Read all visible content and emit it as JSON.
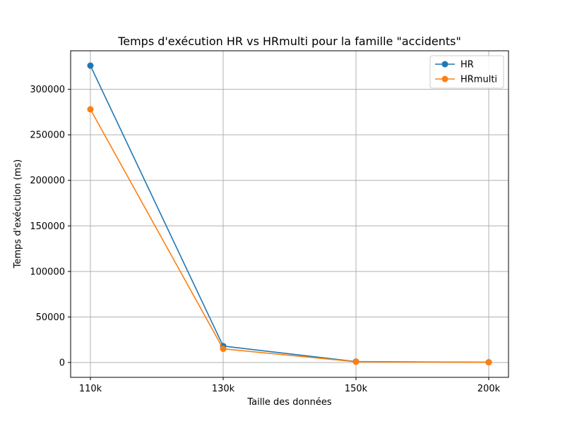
{
  "chart_data": {
    "type": "line",
    "title": "Temps d'exécution HR vs HRmulti pour la famille \"accidents\"",
    "xlabel": "Taille des données",
    "ylabel": "Temps d'exécution (ms)",
    "categories": [
      "110k",
      "130k",
      "150k",
      "200k"
    ],
    "series": [
      {
        "name": "HR",
        "color": "#1f77b4",
        "marker": "circle",
        "values": [
          326000,
          18000,
          1000,
          300
        ]
      },
      {
        "name": "HRmulti",
        "color": "#ff7f0e",
        "marker": "circle",
        "values": [
          278000,
          15000,
          800,
          200
        ]
      }
    ],
    "ylim": [
      -16300,
      342300
    ],
    "yticks": [
      0,
      50000,
      100000,
      150000,
      200000,
      250000,
      300000
    ],
    "ytick_labels": [
      "0",
      "50000",
      "100000",
      "150000",
      "200000",
      "250000",
      "300000"
    ],
    "grid": true,
    "legend": "top-right",
    "colors": {
      "axis": "#000000",
      "grid": "#b0b0b0",
      "legend_border": "#cccccc"
    }
  }
}
